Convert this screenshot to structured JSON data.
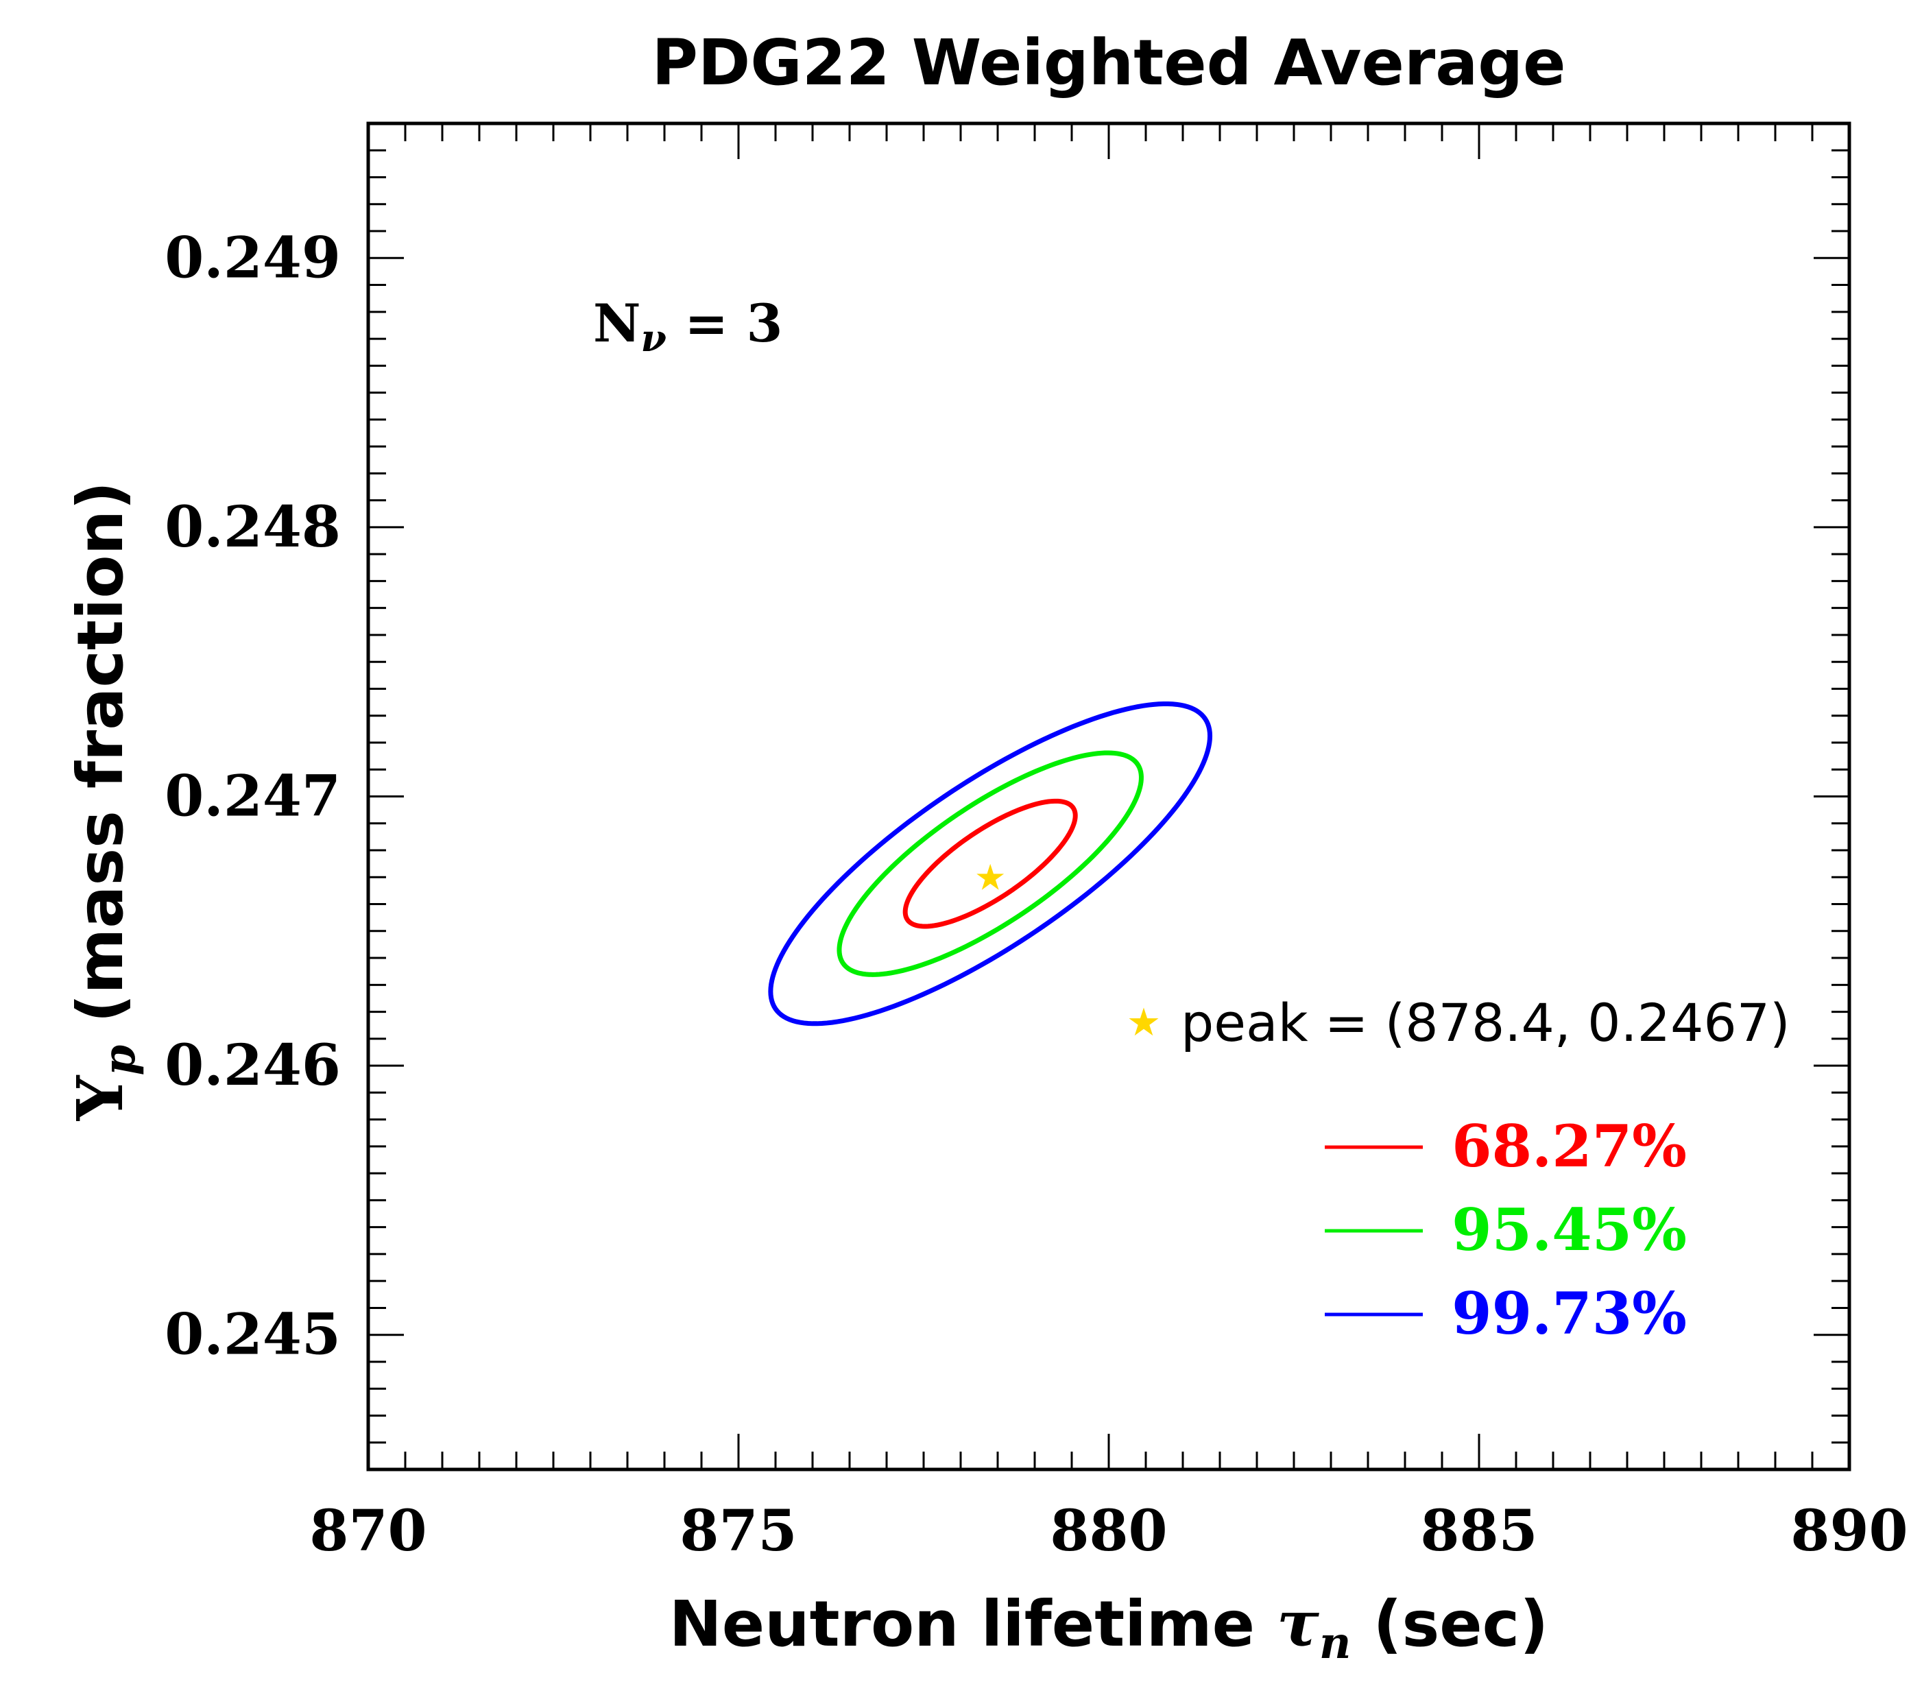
{
  "chart_data": {
    "type": "contour",
    "title": "PDG22 Weighted Average",
    "xlabel": {
      "prefix": "Neutron lifetime ",
      "symbol": "τ",
      "sub": "n",
      "suffix": " (sec)"
    },
    "ylabel": {
      "symbol": "Y",
      "sub": "p",
      "suffix": " (mass fraction)"
    },
    "xlim": [
      870,
      890
    ],
    "ylim": [
      0.2445,
      0.2495
    ],
    "x_ticks": [
      870,
      875,
      880,
      885,
      890
    ],
    "x_tick_labels": [
      "870",
      "875",
      "880",
      "885",
      "890"
    ],
    "y_ticks": [
      0.245,
      0.246,
      0.247,
      0.248,
      0.249
    ],
    "y_tick_labels": [
      "0.245",
      "0.246",
      "0.247",
      "0.248",
      "0.249"
    ],
    "annotation": {
      "text": "N",
      "sub": "ν",
      "rest": " = 3"
    },
    "peak": {
      "x": 878.4,
      "y": 0.2467,
      "label": "peak = (878.4, 0.2467)",
      "color": "#FFD700"
    },
    "contours": [
      {
        "name": "68.27%",
        "color": "#FF0000",
        "center": [
          878.4,
          0.24675
        ],
        "semi_major": 1.35,
        "semi_minor": 0.46,
        "angle_deg": 34
      },
      {
        "name": "95.45%",
        "color": "#00EE00",
        "center": [
          878.4,
          0.24675
        ],
        "semi_major": 2.4,
        "semi_minor": 0.8,
        "angle_deg": 34
      },
      {
        "name": "99.73%",
        "color": "#0000FF",
        "center": [
          878.4,
          0.24675
        ],
        "semi_major": 3.5,
        "semi_minor": 1.1,
        "angle_deg": 34
      }
    ],
    "legend": {
      "position": "bottom-right",
      "entries": [
        "68.27%",
        "95.45%",
        "99.73%"
      ]
    }
  }
}
